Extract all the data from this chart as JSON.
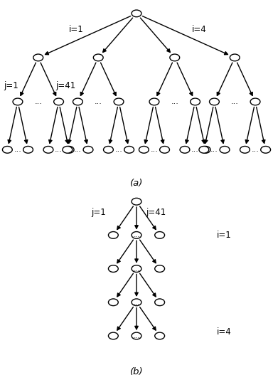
{
  "fig_width": 3.84,
  "fig_height": 5.34,
  "bg_color": "#ffffff",
  "node_color": "#ffffff",
  "node_edge_color": "#000000",
  "arrow_color": "#000000",
  "font_size": 8.5,
  "label_a": "(a)",
  "label_b": "(b)",
  "label_i1": "i=1",
  "label_i4": "i=4",
  "label_j1": "j=1",
  "label_j41": "j=41",
  "dots": "..."
}
